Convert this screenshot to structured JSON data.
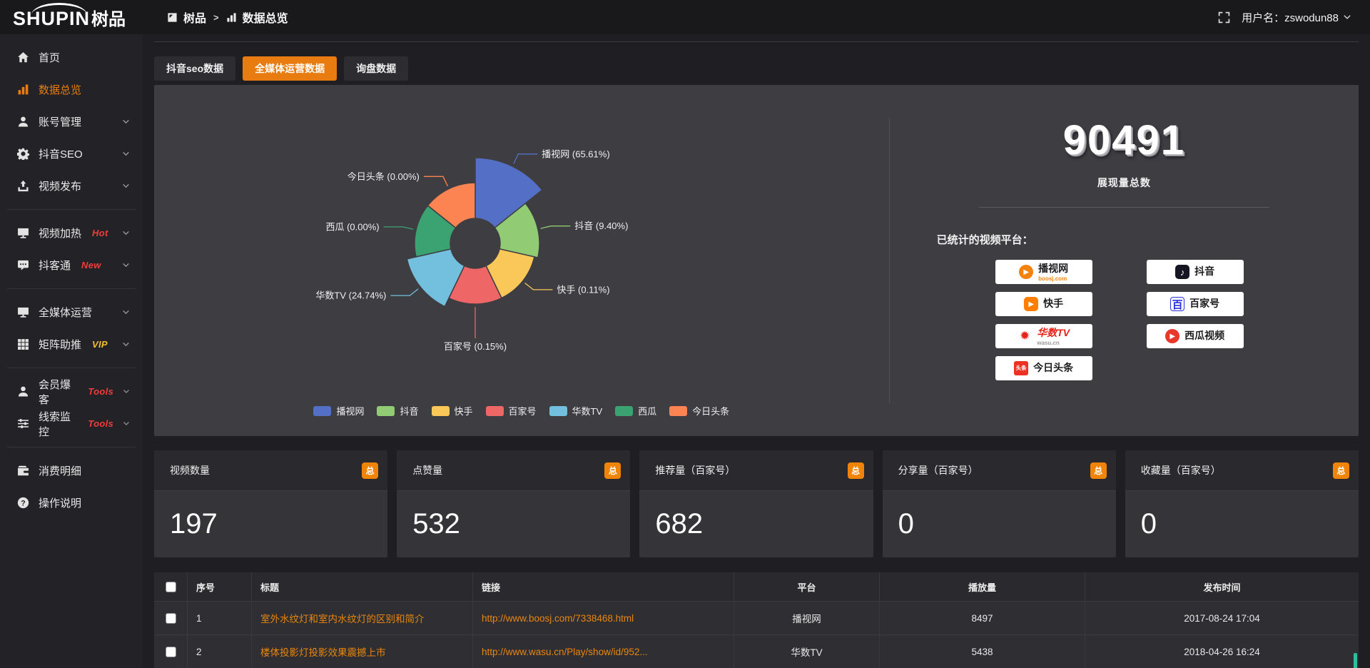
{
  "header": {
    "logo_en": "SHUPIN",
    "logo_cn": "树品",
    "breadcrumb": {
      "root": "树品",
      "separator": ">",
      "current": "数据总览"
    },
    "username": "用户名：zswodun88"
  },
  "sidebar": {
    "groups": [
      {
        "items": [
          {
            "id": "home",
            "icon": "home-icon",
            "label": "首页"
          },
          {
            "id": "data-overview",
            "icon": "chart-bars-icon",
            "label": "数据总览",
            "active": true
          },
          {
            "id": "account-manage",
            "icon": "user-icon",
            "label": "账号管理",
            "chevron": true
          },
          {
            "id": "douyin-seo",
            "icon": "gear-icon",
            "label": "抖音SEO",
            "chevron": true
          },
          {
            "id": "video-publish",
            "icon": "upload-icon",
            "label": "视频发布",
            "chevron": true
          }
        ]
      },
      {
        "items": [
          {
            "id": "video-heat",
            "icon": "display-icon",
            "label": "视频加热",
            "badge": "Hot",
            "badge_color": "#f23c3c",
            "chevron": true
          },
          {
            "id": "douketong",
            "icon": "chat-icon",
            "label": "抖客通",
            "badge": "New",
            "badge_color": "#f23c3c",
            "chevron": true
          }
        ]
      },
      {
        "items": [
          {
            "id": "media-ops",
            "icon": "monitor-icon",
            "label": "全媒体运营",
            "chevron": true
          },
          {
            "id": "matrix-boost",
            "icon": "grid-icon",
            "label": "矩阵助推",
            "badge": "VIP",
            "badge_color": "#f0c02e",
            "chevron": true
          }
        ]
      },
      {
        "items": [
          {
            "id": "member-burst",
            "icon": "person-icon",
            "label": "会员爆客",
            "badge": "Tools",
            "badge_color": "#f23c3c",
            "chevron": true
          },
          {
            "id": "clue-monitor",
            "icon": "sliders-icon",
            "label": "线索监控",
            "badge": "Tools",
            "badge_color": "#f23c3c",
            "chevron": true
          }
        ]
      },
      {
        "items": [
          {
            "id": "consume-detail",
            "icon": "wallet-icon",
            "label": "消费明细"
          },
          {
            "id": "help",
            "icon": "help-icon",
            "label": "操作说明"
          }
        ]
      }
    ]
  },
  "tabs": [
    {
      "label": "抖音seo数据",
      "active": false
    },
    {
      "label": "全媒体运营数据",
      "active": true
    },
    {
      "label": "询盘数据",
      "active": false
    }
  ],
  "chart_data": {
    "type": "pie",
    "variant": "nightingale-rose",
    "legend_position": "bottom",
    "value_unit": "percent",
    "series": [
      {
        "name": "播视网",
        "pct": 65.61,
        "color": "#5470c6"
      },
      {
        "name": "抖音",
        "pct": 9.4,
        "color": "#91cc75"
      },
      {
        "name": "快手",
        "pct": 0.11,
        "color": "#fac858"
      },
      {
        "name": "百家号",
        "pct": 0.15,
        "color": "#ee6666"
      },
      {
        "name": "华数TV",
        "pct": 24.74,
        "color": "#73c0de"
      },
      {
        "name": "西瓜",
        "pct": 0.0,
        "color": "#3ba272"
      },
      {
        "name": "今日头条",
        "pct": 0.0,
        "color": "#fc8452"
      }
    ]
  },
  "summary": {
    "total_value": "90491",
    "total_label": "展现量总数",
    "platforms_title": "已统计的视频平台：",
    "platforms": [
      {
        "name": "播视网",
        "sub": "boosj.com",
        "icon": "boosj-logo"
      },
      {
        "name": "抖音",
        "icon": "douyin-logo"
      },
      {
        "name": "快手",
        "icon": "kuaishou-logo"
      },
      {
        "name": "百家号",
        "icon": "baijiahao-logo"
      },
      {
        "name": "华数TV",
        "sub": "wasu.cn",
        "icon": "wasu-logo"
      },
      {
        "name": "西瓜视频",
        "icon": "xigua-logo"
      },
      {
        "name": "今日头条",
        "icon": "toutiao-logo"
      }
    ]
  },
  "stat_cards": [
    {
      "label": "视频数量",
      "badge": "总",
      "value": "197"
    },
    {
      "label": "点赞量",
      "badge": "总",
      "value": "532"
    },
    {
      "label": "推荐量（百家号）",
      "badge": "总",
      "value": "682"
    },
    {
      "label": "分享量（百家号）",
      "badge": "总",
      "value": "0"
    },
    {
      "label": "收藏量（百家号）",
      "badge": "总",
      "value": "0"
    }
  ],
  "table": {
    "headers": {
      "no": "序号",
      "title": "标题",
      "link": "链接",
      "platform": "平台",
      "plays": "播放量",
      "time": "发布时间"
    },
    "rows": [
      {
        "no": "1",
        "title": "室外水纹灯和室内水纹灯的区别和简介",
        "link": "http://www.boosj.com/7338468.html",
        "platform": "播视网",
        "plays": "8497",
        "time": "2017-08-24 17:04"
      },
      {
        "no": "2",
        "title": "楼体投影灯投影效果震撼上市",
        "link": "http://www.wasu.cn/Play/show/id/952...",
        "platform": "华数TV",
        "plays": "5438",
        "time": "2018-04-26 16:24"
      }
    ]
  },
  "colors": {
    "accent_orange": "#e87c10",
    "badge_orange": "#ef8408",
    "hot_red": "#f23c3c",
    "vip_gold": "#f0c02e",
    "link_orange": "#e8860f",
    "scroll_thumb_teal": "#2abf9e",
    "panel_gray": "#3e3e42"
  }
}
